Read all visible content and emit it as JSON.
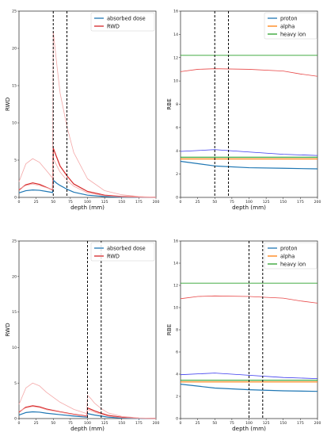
{
  "chart_data": [
    {
      "type": "line",
      "xlabel": "depth (mm)",
      "ylabel": "RWD",
      "xlim": [
        0,
        200
      ],
      "ylim": [
        0,
        25
      ],
      "xticks": [
        "0",
        "25",
        "50",
        "75",
        "100",
        "125",
        "150",
        "175",
        "200"
      ],
      "yticks": [
        "0",
        "5",
        "10",
        "15",
        "20",
        "25"
      ],
      "vlines": [
        50,
        70
      ],
      "legend": {
        "position": "top-right",
        "entries": [
          "absorbed dose",
          "RWD"
        ]
      },
      "series": [
        {
          "name": "absorbed dose",
          "color": "#1f77b4",
          "x": [
            0,
            10,
            20,
            30,
            40,
            49,
            50,
            55,
            60,
            70,
            80,
            100,
            125,
            150,
            175,
            200
          ],
          "y": [
            0.6,
            0.9,
            1.0,
            0.95,
            0.8,
            0.65,
            2.3,
            1.9,
            1.6,
            1.1,
            0.7,
            0.3,
            0.12,
            0.05,
            0.02,
            0.01
          ]
        },
        {
          "name": "RWD",
          "color": "#d62728",
          "x": [
            0,
            10,
            20,
            30,
            40,
            49,
            50,
            55,
            60,
            70,
            80,
            100,
            125,
            150,
            175,
            200
          ],
          "y": [
            1.0,
            1.7,
            1.95,
            1.75,
            1.35,
            1.0,
            6.6,
            5.4,
            4.2,
            2.9,
            1.8,
            0.8,
            0.3,
            0.12,
            0.05,
            0.02
          ]
        },
        {
          "name": "",
          "color": "#f4a8a8",
          "x": [
            0,
            10,
            20,
            30,
            40,
            49,
            50,
            55,
            60,
            70,
            80,
            100,
            125,
            150,
            175,
            200
          ],
          "y": [
            2.1,
            4.5,
            5.2,
            4.7,
            3.6,
            2.6,
            22.3,
            18.0,
            14.0,
            9.5,
            6.0,
            2.5,
            0.9,
            0.35,
            0.12,
            0.04
          ]
        },
        {
          "name": "",
          "color": "#f4a8a8",
          "x": [
            0,
            10,
            20,
            30,
            40,
            49,
            50,
            55,
            60,
            70,
            80,
            100,
            125,
            150,
            175,
            200
          ],
          "y": [
            1.1,
            1.6,
            1.8,
            1.6,
            1.3,
            1.05,
            5.2,
            4.3,
            3.4,
            2.3,
            1.5,
            0.6,
            0.22,
            0.08,
            0.03,
            0.01
          ]
        }
      ]
    },
    {
      "type": "line",
      "xlabel": "depth (mm)",
      "ylabel": "RBE",
      "xlim": [
        0,
        200
      ],
      "ylim": [
        0,
        16
      ],
      "xticks": [
        "0",
        "25",
        "50",
        "75",
        "100",
        "125",
        "150",
        "175",
        "200"
      ],
      "yticks": [
        "0",
        "2",
        "4",
        "6",
        "8",
        "10",
        "12",
        "14",
        "16"
      ],
      "vlines": [
        50,
        70
      ],
      "legend": {
        "position": "top-right",
        "entries": [
          "proton",
          "alpha",
          "heavy ion"
        ]
      },
      "series": [
        {
          "name": "proton",
          "color": "#1f77b4",
          "x": [
            0,
            50,
            100,
            150,
            200
          ],
          "y": [
            3.1,
            2.7,
            2.55,
            2.5,
            2.45
          ]
        },
        {
          "name": "alpha",
          "color": "#ff7f0e",
          "x": [
            0,
            50,
            100,
            150,
            200
          ],
          "y": [
            3.3,
            3.3,
            3.3,
            3.3,
            3.3
          ]
        },
        {
          "name": "heavy ion",
          "color": "#2ca02c",
          "x": [
            0,
            50,
            100,
            150,
            200
          ],
          "y": [
            3.45,
            3.45,
            3.45,
            3.45,
            3.45
          ]
        },
        {
          "name": "",
          "color": "#3a3aee",
          "x": [
            0,
            50,
            100,
            150,
            200
          ],
          "y": [
            3.95,
            4.1,
            3.9,
            3.7,
            3.6
          ]
        },
        {
          "name": "",
          "color": "#e84848",
          "x": [
            0,
            25,
            50,
            100,
            150,
            175,
            200
          ],
          "y": [
            10.8,
            11.0,
            11.05,
            11.0,
            10.85,
            10.6,
            10.4
          ]
        },
        {
          "name": "",
          "color": "#2ca02c",
          "x": [
            0,
            200
          ],
          "y": [
            12.2,
            12.2
          ]
        }
      ]
    },
    {
      "type": "line",
      "xlabel": "depth (mm)",
      "ylabel": "RWD",
      "xlim": [
        0,
        200
      ],
      "ylim": [
        0,
        25
      ],
      "xticks": [
        "0",
        "25",
        "50",
        "75",
        "100",
        "125",
        "150",
        "175",
        "200"
      ],
      "yticks": [
        "0",
        "5",
        "10",
        "15",
        "20",
        "25"
      ],
      "vlines": [
        100,
        120
      ],
      "legend": {
        "position": "top-right",
        "entries": [
          "absorbed dose",
          "RWD"
        ]
      },
      "series": [
        {
          "name": "absorbed dose",
          "color": "#1f77b4",
          "x": [
            0,
            10,
            20,
            30,
            40,
            60,
            80,
            99,
            100,
            105,
            110,
            120,
            130,
            150,
            175,
            200
          ],
          "y": [
            0.5,
            0.85,
            0.95,
            0.9,
            0.75,
            0.55,
            0.35,
            0.2,
            0.7,
            0.6,
            0.5,
            0.35,
            0.2,
            0.08,
            0.03,
            0.01
          ]
        },
        {
          "name": "RWD",
          "color": "#d62728",
          "x": [
            0,
            10,
            20,
            30,
            40,
            60,
            80,
            99,
            100,
            105,
            110,
            120,
            130,
            150,
            175,
            200
          ],
          "y": [
            0.9,
            1.6,
            1.8,
            1.65,
            1.35,
            0.95,
            0.6,
            0.35,
            1.5,
            1.3,
            1.1,
            0.75,
            0.45,
            0.18,
            0.06,
            0.02
          ]
        },
        {
          "name": "",
          "color": "#f4a8a8",
          "x": [
            0,
            10,
            20,
            30,
            40,
            60,
            80,
            99,
            100,
            105,
            110,
            120,
            130,
            150,
            175,
            200
          ],
          "y": [
            2.0,
            4.3,
            5.0,
            4.6,
            3.7,
            2.3,
            1.3,
            0.7,
            3.3,
            2.8,
            2.2,
            1.4,
            0.8,
            0.3,
            0.1,
            0.03
          ]
        },
        {
          "name": "",
          "color": "#f4a8a8",
          "x": [
            0,
            10,
            20,
            30,
            40,
            60,
            80,
            99,
            100,
            105,
            110,
            120,
            130,
            150,
            175,
            200
          ],
          "y": [
            1.0,
            1.5,
            1.7,
            1.55,
            1.25,
            0.9,
            0.55,
            0.3,
            1.3,
            1.1,
            0.9,
            0.6,
            0.35,
            0.13,
            0.04,
            0.01
          ]
        }
      ]
    },
    {
      "type": "line",
      "xlabel": "depth (mm)",
      "ylabel": "RBE",
      "xlim": [
        0,
        200
      ],
      "ylim": [
        0,
        16
      ],
      "xticks": [
        "0",
        "25",
        "50",
        "75",
        "100",
        "125",
        "150",
        "175",
        "200"
      ],
      "yticks": [
        "0",
        "2",
        "4",
        "6",
        "8",
        "10",
        "12",
        "14",
        "16"
      ],
      "vlines": [
        100,
        120
      ],
      "legend": {
        "position": "top-right",
        "entries": [
          "proton",
          "alpha",
          "heavy ion"
        ]
      },
      "series": [
        {
          "name": "proton",
          "color": "#1f77b4",
          "x": [
            0,
            50,
            100,
            150,
            200
          ],
          "y": [
            3.1,
            2.75,
            2.6,
            2.5,
            2.45
          ]
        },
        {
          "name": "alpha",
          "color": "#ff7f0e",
          "x": [
            0,
            50,
            100,
            150,
            200
          ],
          "y": [
            3.3,
            3.3,
            3.3,
            3.3,
            3.3
          ]
        },
        {
          "name": "heavy ion",
          "color": "#2ca02c",
          "x": [
            0,
            50,
            100,
            150,
            200
          ],
          "y": [
            3.45,
            3.45,
            3.45,
            3.45,
            3.45
          ]
        },
        {
          "name": "",
          "color": "#3a3aee",
          "x": [
            0,
            50,
            100,
            150,
            200
          ],
          "y": [
            3.95,
            4.1,
            3.9,
            3.7,
            3.6
          ]
        },
        {
          "name": "",
          "color": "#e84848",
          "x": [
            0,
            25,
            50,
            100,
            150,
            175,
            200
          ],
          "y": [
            10.8,
            11.0,
            11.05,
            11.0,
            10.85,
            10.6,
            10.4
          ]
        },
        {
          "name": "",
          "color": "#2ca02c",
          "x": [
            0,
            200
          ],
          "y": [
            12.2,
            12.2
          ]
        }
      ]
    }
  ]
}
